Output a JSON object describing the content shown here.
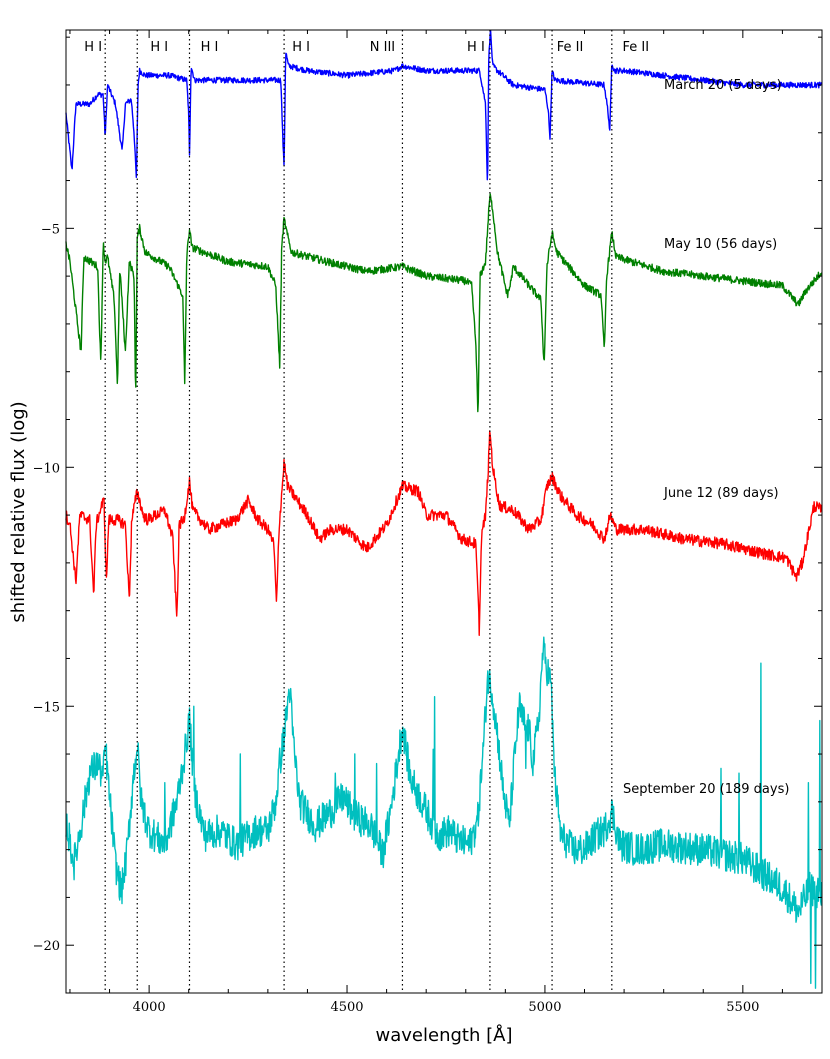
{
  "chart_data": {
    "type": "line",
    "xlabel": "wavelength [Å]",
    "ylabel": "shifted relative flux (log)",
    "xlim": [
      3790,
      5700
    ],
    "ylim": [
      -21,
      -0.85
    ],
    "x_ticks": [
      4000,
      4500,
      5000,
      5500
    ],
    "y_ticks": [
      -5,
      -10,
      -15,
      -20
    ],
    "grid": false,
    "lines": [
      {
        "x": 3889,
        "label": "H I"
      },
      {
        "x": 3970,
        "label": "H I"
      },
      {
        "x": 4102,
        "label": "H I"
      },
      {
        "x": 4341,
        "label": "H I"
      },
      {
        "x": 4640,
        "label": "N III"
      },
      {
        "x": 4861,
        "label": "H I"
      },
      {
        "x": 5018,
        "label": "Fe II"
      },
      {
        "x": 5169,
        "label": "Fe II"
      }
    ],
    "series": [
      {
        "name": "March 20 (5 days)",
        "color": "#0000ff",
        "noise": 0.06,
        "points": [
          [
            3790,
            -2.6
          ],
          [
            3805,
            -3.8
          ],
          [
            3815,
            -2.4
          ],
          [
            3850,
            -2.4
          ],
          [
            3870,
            -2.2
          ],
          [
            3884,
            -2.2
          ],
          [
            3889,
            -3.1
          ],
          [
            3895,
            -2.0
          ],
          [
            3915,
            -2.4
          ],
          [
            3932,
            -3.4
          ],
          [
            3940,
            -2.4
          ],
          [
            3955,
            -2.3
          ],
          [
            3962,
            -3.0
          ],
          [
            3968,
            -4.0
          ],
          [
            3972,
            -2.0
          ],
          [
            3976,
            -1.7
          ],
          [
            3990,
            -1.8
          ],
          [
            4050,
            -1.8
          ],
          [
            4095,
            -1.9
          ],
          [
            4100,
            -2.6
          ],
          [
            4102,
            -3.5
          ],
          [
            4106,
            -1.6
          ],
          [
            4115,
            -1.9
          ],
          [
            4200,
            -1.9
          ],
          [
            4300,
            -1.9
          ],
          [
            4333,
            -1.9
          ],
          [
            4338,
            -3.2
          ],
          [
            4341,
            -3.7
          ],
          [
            4345,
            -1.3
          ],
          [
            4352,
            -1.6
          ],
          [
            4400,
            -1.7
          ],
          [
            4500,
            -1.8
          ],
          [
            4620,
            -1.7
          ],
          [
            4640,
            -1.6
          ],
          [
            4700,
            -1.7
          ],
          [
            4800,
            -1.7
          ],
          [
            4835,
            -1.7
          ],
          [
            4850,
            -2.4
          ],
          [
            4855,
            -4.2
          ],
          [
            4858,
            -1.5
          ],
          [
            4862,
            -0.8
          ],
          [
            4868,
            -1.6
          ],
          [
            4880,
            -1.7
          ],
          [
            4920,
            -2.0
          ],
          [
            5000,
            -2.1
          ],
          [
            5008,
            -2.5
          ],
          [
            5013,
            -3.1
          ],
          [
            5018,
            -1.7
          ],
          [
            5025,
            -1.9
          ],
          [
            5150,
            -2.0
          ],
          [
            5160,
            -2.6
          ],
          [
            5164,
            -3.0
          ],
          [
            5169,
            -1.5
          ],
          [
            5175,
            -1.7
          ],
          [
            5200,
            -1.7
          ],
          [
            5300,
            -1.8
          ],
          [
            5400,
            -1.9
          ],
          [
            5500,
            -2.0
          ],
          [
            5600,
            -2.0
          ],
          [
            5700,
            -2.0
          ]
        ],
        "spikes": []
      },
      {
        "name": "May 10 (56 days)",
        "color": "#008000",
        "noise": 0.08,
        "points": [
          [
            3790,
            -5.3
          ],
          [
            3800,
            -5.7
          ],
          [
            3828,
            -7.6
          ],
          [
            3835,
            -5.6
          ],
          [
            3870,
            -5.8
          ],
          [
            3878,
            -7.9
          ],
          [
            3884,
            -5.3
          ],
          [
            3889,
            -5.7
          ],
          [
            3895,
            -5.6
          ],
          [
            3912,
            -6.5
          ],
          [
            3920,
            -8.3
          ],
          [
            3926,
            -5.8
          ],
          [
            3940,
            -7.6
          ],
          [
            3950,
            -5.7
          ],
          [
            3962,
            -6.0
          ],
          [
            3966,
            -8.6
          ],
          [
            3970,
            -5.2
          ],
          [
            3976,
            -5.0
          ],
          [
            3990,
            -5.5
          ],
          [
            4050,
            -5.8
          ],
          [
            4085,
            -6.4
          ],
          [
            4090,
            -8.3
          ],
          [
            4095,
            -5.6
          ],
          [
            4102,
            -5.0
          ],
          [
            4108,
            -5.4
          ],
          [
            4200,
            -5.7
          ],
          [
            4300,
            -5.8
          ],
          [
            4320,
            -6.2
          ],
          [
            4330,
            -7.9
          ],
          [
            4335,
            -5.4
          ],
          [
            4341,
            -4.8
          ],
          [
            4348,
            -5.1
          ],
          [
            4360,
            -5.5
          ],
          [
            4450,
            -5.7
          ],
          [
            4550,
            -5.9
          ],
          [
            4640,
            -5.8
          ],
          [
            4700,
            -6.0
          ],
          [
            4800,
            -6.1
          ],
          [
            4815,
            -6.2
          ],
          [
            4826,
            -7.5
          ],
          [
            4831,
            -9.0
          ],
          [
            4836,
            -6.0
          ],
          [
            4850,
            -5.7
          ],
          [
            4856,
            -4.9
          ],
          [
            4861,
            -4.3
          ],
          [
            4868,
            -4.6
          ],
          [
            4880,
            -5.5
          ],
          [
            4905,
            -6.4
          ],
          [
            4912,
            -6.2
          ],
          [
            4920,
            -5.8
          ],
          [
            4990,
            -6.5
          ],
          [
            4998,
            -7.9
          ],
          [
            5005,
            -5.8
          ],
          [
            5018,
            -5.1
          ],
          [
            5030,
            -5.5
          ],
          [
            5100,
            -6.2
          ],
          [
            5142,
            -6.4
          ],
          [
            5150,
            -7.6
          ],
          [
            5156,
            -6.0
          ],
          [
            5169,
            -5.1
          ],
          [
            5180,
            -5.6
          ],
          [
            5300,
            -5.9
          ],
          [
            5400,
            -6.0
          ],
          [
            5500,
            -6.1
          ],
          [
            5600,
            -6.2
          ],
          [
            5640,
            -6.6
          ],
          [
            5660,
            -6.3
          ],
          [
            5680,
            -6.1
          ],
          [
            5700,
            -5.9
          ]
        ],
        "spikes": []
      },
      {
        "name": "June 12 (89 days)",
        "color": "#ff0000",
        "noise": 0.12,
        "points": [
          [
            3790,
            -11.0
          ],
          [
            3800,
            -11.2
          ],
          [
            3815,
            -12.4
          ],
          [
            3825,
            -11.0
          ],
          [
            3850,
            -11.1
          ],
          [
            3860,
            -12.7
          ],
          [
            3866,
            -11.2
          ],
          [
            3880,
            -10.8
          ],
          [
            3886,
            -10.7
          ],
          [
            3892,
            -12.4
          ],
          [
            3898,
            -11.1
          ],
          [
            3920,
            -11.1
          ],
          [
            3940,
            -11.2
          ],
          [
            3950,
            -12.8
          ],
          [
            3956,
            -11.1
          ],
          [
            3970,
            -10.5
          ],
          [
            3985,
            -11.0
          ],
          [
            3995,
            -11.1
          ],
          [
            4040,
            -10.9
          ],
          [
            4060,
            -11.5
          ],
          [
            4070,
            -13.2
          ],
          [
            4076,
            -11.2
          ],
          [
            4088,
            -11.1
          ],
          [
            4102,
            -10.3
          ],
          [
            4110,
            -10.9
          ],
          [
            4150,
            -11.3
          ],
          [
            4220,
            -11.1
          ],
          [
            4250,
            -10.7
          ],
          [
            4275,
            -11.1
          ],
          [
            4300,
            -11.3
          ],
          [
            4315,
            -11.6
          ],
          [
            4322,
            -12.9
          ],
          [
            4328,
            -11.3
          ],
          [
            4341,
            -9.9
          ],
          [
            4350,
            -10.4
          ],
          [
            4400,
            -11.0
          ],
          [
            4430,
            -11.5
          ],
          [
            4460,
            -11.3
          ],
          [
            4500,
            -11.3
          ],
          [
            4550,
            -11.7
          ],
          [
            4600,
            -11.2
          ],
          [
            4640,
            -10.4
          ],
          [
            4680,
            -10.5
          ],
          [
            4700,
            -11.0
          ],
          [
            4750,
            -11.0
          ],
          [
            4790,
            -11.5
          ],
          [
            4825,
            -11.6
          ],
          [
            4830,
            -12.5
          ],
          [
            4834,
            -13.4
          ],
          [
            4840,
            -11.4
          ],
          [
            4850,
            -11.0
          ],
          [
            4857,
            -10.0
          ],
          [
            4861,
            -9.2
          ],
          [
            4868,
            -10.0
          ],
          [
            4885,
            -10.8
          ],
          [
            4920,
            -10.9
          ],
          [
            4960,
            -11.3
          ],
          [
            4990,
            -11.1
          ],
          [
            5005,
            -10.4
          ],
          [
            5018,
            -10.2
          ],
          [
            5040,
            -10.6
          ],
          [
            5080,
            -11.0
          ],
          [
            5120,
            -11.2
          ],
          [
            5150,
            -11.5
          ],
          [
            5165,
            -11.0
          ],
          [
            5180,
            -11.3
          ],
          [
            5250,
            -11.3
          ],
          [
            5350,
            -11.5
          ],
          [
            5450,
            -11.6
          ],
          [
            5550,
            -11.8
          ],
          [
            5610,
            -11.9
          ],
          [
            5635,
            -12.3
          ],
          [
            5650,
            -12.0
          ],
          [
            5665,
            -11.4
          ],
          [
            5680,
            -10.8
          ],
          [
            5700,
            -10.9
          ]
        ],
        "spikes": []
      },
      {
        "name": "September 20 (189 days)",
        "color": "#00bfbf",
        "noise": 0.35,
        "points": [
          [
            3790,
            -17.4
          ],
          [
            3810,
            -18.3
          ],
          [
            3830,
            -17.4
          ],
          [
            3850,
            -16.4
          ],
          [
            3870,
            -16.2
          ],
          [
            3884,
            -16.5
          ],
          [
            3889,
            -15.8
          ],
          [
            3900,
            -16.9
          ],
          [
            3915,
            -18.3
          ],
          [
            3930,
            -18.9
          ],
          [
            3945,
            -18.0
          ],
          [
            3960,
            -16.5
          ],
          [
            3970,
            -15.8
          ],
          [
            3980,
            -17.0
          ],
          [
            4000,
            -17.6
          ],
          [
            4040,
            -17.9
          ],
          [
            4070,
            -17.0
          ],
          [
            4090,
            -16.0
          ],
          [
            4102,
            -15.3
          ],
          [
            4115,
            -16.8
          ],
          [
            4140,
            -17.7
          ],
          [
            4180,
            -17.6
          ],
          [
            4220,
            -17.9
          ],
          [
            4270,
            -17.6
          ],
          [
            4300,
            -17.6
          ],
          [
            4320,
            -17.0
          ],
          [
            4330,
            -16.2
          ],
          [
            4341,
            -15.6
          ],
          [
            4355,
            -14.6
          ],
          [
            4365,
            -15.8
          ],
          [
            4380,
            -17.0
          ],
          [
            4420,
            -17.5
          ],
          [
            4460,
            -17.2
          ],
          [
            4490,
            -16.9
          ],
          [
            4520,
            -17.3
          ],
          [
            4560,
            -17.5
          ],
          [
            4590,
            -18.1
          ],
          [
            4610,
            -17.2
          ],
          [
            4630,
            -16.0
          ],
          [
            4640,
            -15.4
          ],
          [
            4660,
            -16.5
          ],
          [
            4700,
            -17.2
          ],
          [
            4730,
            -17.7
          ],
          [
            4760,
            -17.6
          ],
          [
            4780,
            -17.8
          ],
          [
            4810,
            -17.9
          ],
          [
            4830,
            -17.4
          ],
          [
            4845,
            -15.8
          ],
          [
            4855,
            -14.4
          ],
          [
            4865,
            -14.6
          ],
          [
            4880,
            -15.6
          ],
          [
            4895,
            -16.8
          ],
          [
            4910,
            -17.5
          ],
          [
            4922,
            -16.2
          ],
          [
            4935,
            -15.0
          ],
          [
            4945,
            -15.3
          ],
          [
            4960,
            -15.5
          ],
          [
            4970,
            -16.2
          ],
          [
            4985,
            -15.2
          ],
          [
            4995,
            -13.8
          ],
          [
            5005,
            -14.2
          ],
          [
            5015,
            -14.5
          ],
          [
            5025,
            -16.5
          ],
          [
            5040,
            -17.7
          ],
          [
            5070,
            -18.0
          ],
          [
            5100,
            -18.0
          ],
          [
            5130,
            -17.7
          ],
          [
            5150,
            -17.6
          ],
          [
            5169,
            -17.2
          ],
          [
            5190,
            -17.9
          ],
          [
            5230,
            -18.0
          ],
          [
            5300,
            -17.9
          ],
          [
            5400,
            -18.0
          ],
          [
            5500,
            -18.2
          ],
          [
            5550,
            -18.5
          ],
          [
            5600,
            -18.8
          ],
          [
            5640,
            -19.3
          ],
          [
            5670,
            -18.8
          ],
          [
            5700,
            -19.0
          ]
        ],
        "spikes": [
          [
            4040,
            -16.6
          ],
          [
            4113,
            -15.0
          ],
          [
            4230,
            -16.0
          ],
          [
            4470,
            -16.4
          ],
          [
            4520,
            -16.0
          ],
          [
            4575,
            -16.2
          ],
          [
            4717,
            -15.9
          ],
          [
            4721,
            -14.8
          ],
          [
            4952,
            -16.3
          ],
          [
            5445,
            -16.3
          ],
          [
            5490,
            -16.4
          ],
          [
            5545,
            -14.1
          ],
          [
            5665,
            -16.6
          ],
          [
            5690,
            -18.6
          ],
          [
            5694,
            -15.3
          ],
          [
            5672,
            -20.8
          ],
          [
            5684,
            -20.9
          ]
        ]
      }
    ]
  }
}
